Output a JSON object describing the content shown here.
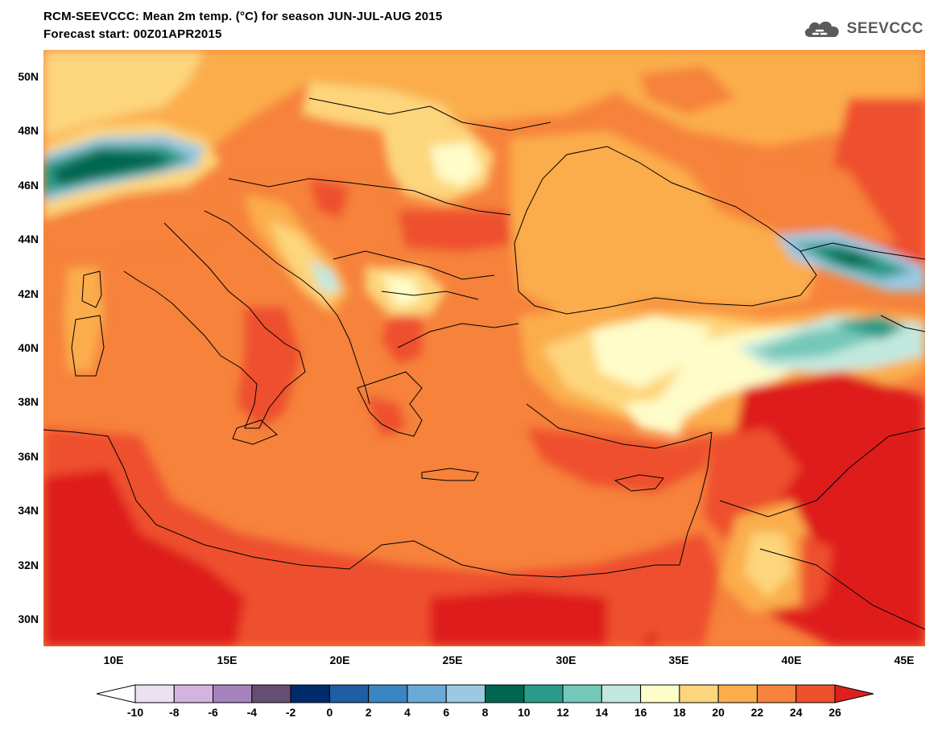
{
  "header": {
    "title_line1": "RCM-SEEVCCC: Mean 2m temp. (°C) for season JUN-JUL-AUG 2015",
    "title_line2": "Forecast start: 00Z01APR2015",
    "logo_text": "SEEVCCC"
  },
  "map": {
    "projection": "lat-lon",
    "lon_range": [
      7,
      46
    ],
    "lat_range": [
      29,
      51
    ],
    "lat_labels": [
      "50N",
      "48N",
      "46N",
      "44N",
      "42N",
      "40N",
      "38N",
      "36N",
      "34N",
      "32N",
      "30N"
    ],
    "lon_labels": [
      "10E",
      "15E",
      "20E",
      "25E",
      "30E",
      "35E",
      "40E",
      "45E"
    ],
    "overlay": "country borders and coastlines",
    "field_description": "filled contours of mean 2m temperature"
  },
  "colorbar": {
    "tick_labels": [
      "-10",
      "-8",
      "-6",
      "-4",
      "-2",
      "0",
      "2",
      "4",
      "6",
      "8",
      "10",
      "12",
      "14",
      "16",
      "18",
      "20",
      "22",
      "24",
      "26"
    ],
    "colors": [
      "#ffffff",
      "#ece0f2",
      "#d3b4e0",
      "#a783bd",
      "#664e72",
      "#002b6b",
      "#1f5ea3",
      "#3986c2",
      "#6aaad6",
      "#9cc8e2",
      "#00664f",
      "#2a9b8a",
      "#74c8b9",
      "#c2e8de",
      "#fefcc8",
      "#fdd57c",
      "#fbad4c",
      "#f6823b",
      "#ee4f2d",
      "#de1f1f"
    ]
  }
}
